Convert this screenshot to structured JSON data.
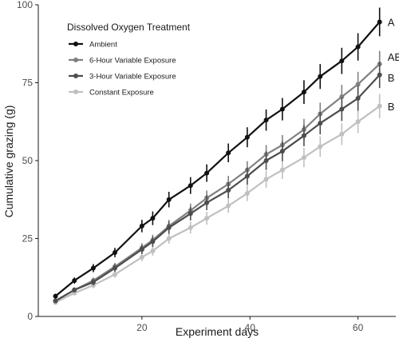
{
  "chart_data": {
    "type": "line",
    "title": "",
    "xlabel": "Experiment days",
    "ylabel": "Cumulative grazing (g)",
    "xlim": [
      2,
      67
    ],
    "ylim": [
      0,
      100
    ],
    "xticks": [
      20,
      40,
      60
    ],
    "yticks": [
      0,
      25,
      50,
      75,
      100
    ],
    "grid": false,
    "legend": {
      "title": "Dissolved Oxygen Treatment",
      "position": "top-left"
    },
    "x": [
      4,
      7.5,
      11,
      15,
      20,
      22,
      25,
      29,
      32,
      36,
      39.5,
      43,
      46,
      50,
      53,
      57,
      60,
      64
    ],
    "series": [
      {
        "name": "Ambient",
        "color": "#111111",
        "values": [
          6.5,
          11.5,
          15.5,
          20.5,
          29,
          31.5,
          37.5,
          42,
          46,
          52.5,
          57.5,
          63,
          66.5,
          72,
          77,
          82,
          86.5,
          94.5
        ],
        "errors": [
          0.8,
          1,
          1.3,
          1.5,
          2,
          2.2,
          2.5,
          2.7,
          2.8,
          3,
          3.2,
          3.4,
          3.6,
          3.8,
          4,
          4.2,
          4.4,
          4.6
        ],
        "end_label": "A"
      },
      {
        "name": "6-Hour Variable Exposure",
        "color": "#808080",
        "values": [
          5,
          8.5,
          11.5,
          16,
          22,
          24.5,
          29,
          34,
          38,
          42.5,
          47,
          52,
          55,
          60,
          65,
          70.5,
          74.5,
          81
        ],
        "errors": [
          0.6,
          0.8,
          1,
          1.2,
          1.5,
          1.7,
          2,
          2.2,
          2.4,
          2.6,
          2.8,
          3,
          3.2,
          3.4,
          3.6,
          3.8,
          4,
          4.2
        ],
        "end_label": "AB"
      },
      {
        "name": "3-Hour Variable Exposure",
        "color": "#4d4d4d",
        "values": [
          5,
          8.5,
          11,
          15.5,
          21.5,
          24,
          28.5,
          33,
          36.5,
          40.5,
          45,
          50,
          53,
          58,
          62,
          66.5,
          70,
          77.5
        ],
        "errors": [
          0.6,
          0.8,
          1,
          1.2,
          1.5,
          1.7,
          2,
          2.2,
          2.4,
          2.6,
          2.8,
          3,
          3.2,
          3.4,
          3.6,
          3.8,
          4,
          4.2
        ],
        "end_label": "B"
      },
      {
        "name": "Constant Exposure",
        "color": "#c0c0c0",
        "values": [
          4.5,
          7.5,
          10,
          13.5,
          19,
          21,
          25,
          28.5,
          31.5,
          35.5,
          39.5,
          44,
          47,
          51,
          54.5,
          58.5,
          62.5,
          67.5
        ],
        "errors": [
          0.5,
          0.7,
          0.9,
          1.1,
          1.3,
          1.5,
          1.7,
          1.9,
          2.1,
          2.3,
          2.5,
          2.7,
          2.9,
          3.1,
          3.3,
          3.5,
          3.7,
          3.9
        ],
        "end_label": "B"
      }
    ]
  }
}
